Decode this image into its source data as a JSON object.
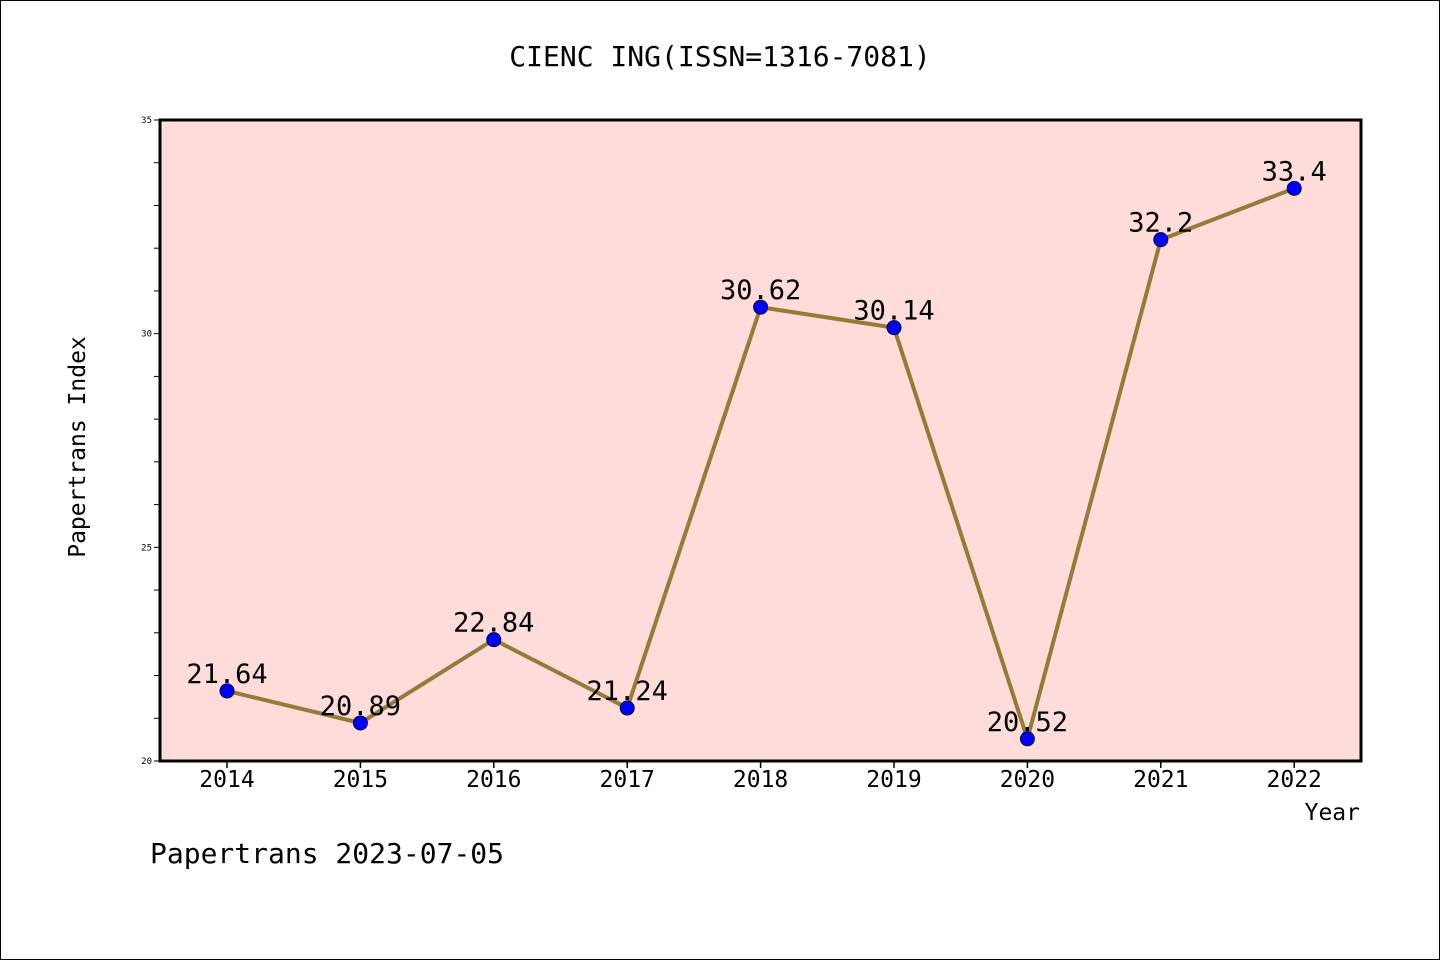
{
  "footer": "Papertrans 2023-07-05",
  "colors": {
    "plot_background": "#FDDCDA",
    "line": "#947B3A",
    "marker": "#0000FF",
    "axis": "#000000"
  },
  "chart_data": {
    "type": "line",
    "title": "CIENC ING(ISSN=1316-7081)",
    "xlabel": "Year",
    "ylabel": "Papertrans Index",
    "categories": [
      "2014",
      "2015",
      "2016",
      "2017",
      "2018",
      "2019",
      "2020",
      "2021",
      "2022"
    ],
    "series": [
      {
        "values": [
          21.64,
          20.89,
          22.84,
          21.24,
          30.62,
          30.14,
          20.52,
          32.2,
          33.4
        ],
        "labels": [
          "21.64",
          "20.89",
          "22.84",
          "21.24",
          "30.62",
          "30.14",
          "20.52",
          "32.2",
          "33.4"
        ]
      }
    ],
    "ylim": [
      20,
      35
    ],
    "yticks": [
      "20",
      "25",
      "30",
      "35"
    ],
    "grid": false,
    "legend": "none"
  }
}
